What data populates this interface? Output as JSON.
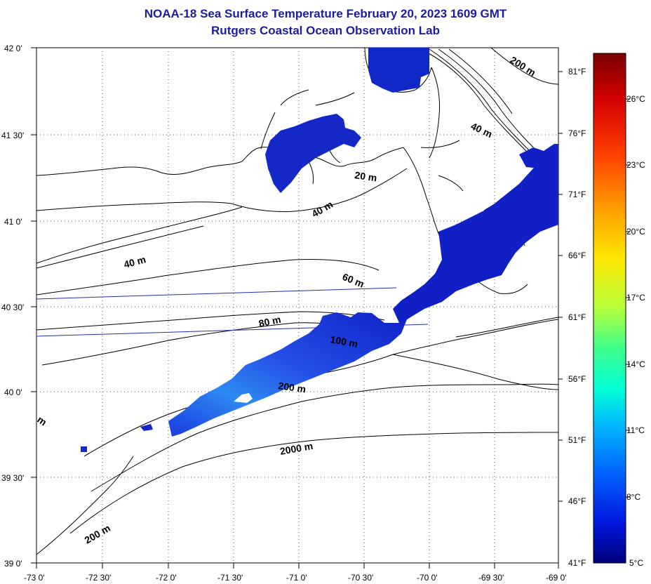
{
  "title": "NOAA-18 Sea Surface Temperature February 20, 2023 1609 GMT",
  "subtitle": "Rutgers Coastal Ocean Observation Lab",
  "lat_ticks": [
    "42 0'",
    "41 30'",
    "41 0'",
    "40 30'",
    "40 0'",
    "39 30'",
    "39 0'"
  ],
  "lon_ticks": [
    "-73 0'",
    "-72 30'",
    "-72 0'",
    "-71 30'",
    "-71 0'",
    "-70 30'",
    "-70 0'",
    "-69 30'",
    "-69 0'"
  ],
  "depth_labels": {
    "d200_ne": "200 m",
    "d40_ne": "40 m",
    "d20": "20 m",
    "d40_mid": "40 m",
    "d40_w": "40 m",
    "d60": "60 m",
    "d80": "80 m",
    "d100": "100 m",
    "d200_mid": "200 m",
    "d2000": "2000 m",
    "d200_sw": "200 m",
    "edge_m": "m"
  },
  "colorbar": {
    "celsius": [
      "26°C",
      "23°C",
      "20°C",
      "17°C",
      "14°C",
      "11°C",
      "8°C",
      "5°C"
    ],
    "fahrenheit": [
      "81°F",
      "76°F",
      "71°F",
      "66°F",
      "61°F",
      "56°F",
      "51°F",
      "46°F",
      "41°F"
    ],
    "stops": [
      "#7a0000",
      "#d40000",
      "#ff4000",
      "#ff9a00",
      "#ffe600",
      "#b4ff3a",
      "#3cff8c",
      "#00ffd8",
      "#00b8ff",
      "#0066ff",
      "#0018e0",
      "#00007a"
    ]
  },
  "colors": {
    "title": "#1c1c9c",
    "sst_cold": "#1020d0",
    "sst_warm": "#2a7ff0"
  }
}
